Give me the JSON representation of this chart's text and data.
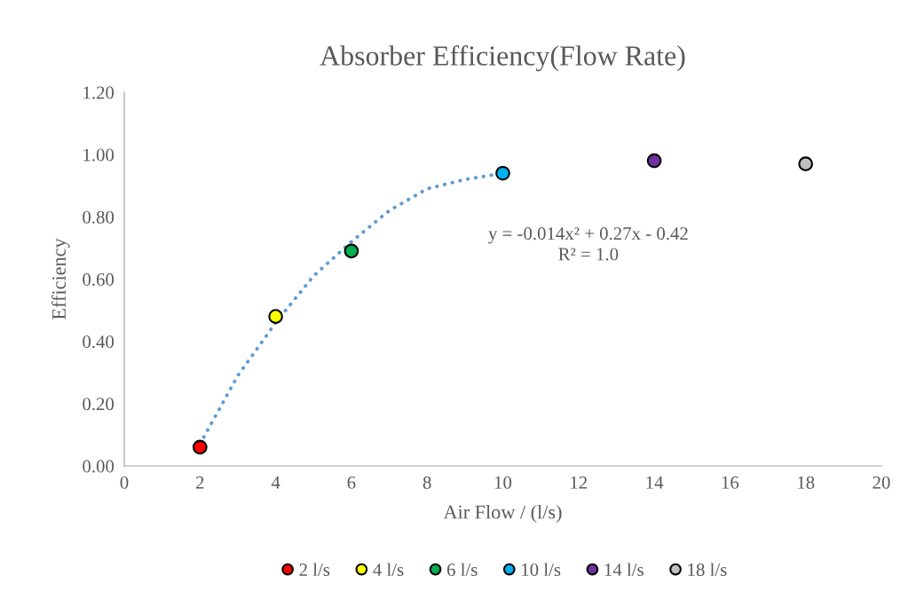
{
  "chart_data": {
    "type": "scatter",
    "title": "Absorber Efficiency(Flow Rate)",
    "xlabel": "Air Flow / (l/s)",
    "ylabel": "Efficiency",
    "xlim": [
      0,
      20
    ],
    "xticks": [
      0,
      2,
      4,
      6,
      8,
      10,
      12,
      14,
      16,
      18,
      20
    ],
    "ylim": [
      0,
      1.2
    ],
    "yticks": [
      {
        "value": 0,
        "label": "0.00"
      },
      {
        "value": 0.2,
        "label": "0.20"
      },
      {
        "value": 0.4,
        "label": "0.40"
      },
      {
        "value": 0.6,
        "label": "0.60"
      },
      {
        "value": 0.8,
        "label": "0.80"
      },
      {
        "value": 1.0,
        "label": "1.00"
      },
      {
        "value": 1.2,
        "label": "1.20"
      }
    ],
    "grid": false,
    "legend": "bottom",
    "marker": "circle",
    "series": [
      {
        "type": "line",
        "color": "#5b9bd5",
        "line_style": "dotted",
        "marker": "none",
        "x": [
          2,
          3,
          4,
          5,
          6,
          7,
          8,
          9,
          10
        ],
        "values": [
          0.07,
          0.29,
          0.46,
          0.61,
          0.72,
          0.82,
          0.89,
          0.92,
          0.94
        ]
      },
      {
        "name": "2 l/s",
        "color": "#ff0000",
        "x": [
          2
        ],
        "values": [
          0.06
        ]
      },
      {
        "name": "4 l/s",
        "color": "#ffff00",
        "x": [
          4
        ],
        "values": [
          0.48
        ]
      },
      {
        "name": "6 l/s",
        "color": "#00b050",
        "x": [
          6
        ],
        "values": [
          0.69
        ]
      },
      {
        "name": "10 l/s",
        "color": "#00b0f0",
        "x": [
          10
        ],
        "values": [
          0.94
        ]
      },
      {
        "name": "14 l/s",
        "color": "#7030a0",
        "x": [
          14
        ],
        "values": [
          0.98
        ]
      },
      {
        "name": "18 l/s",
        "color": "#bfbfbf",
        "x": [
          18
        ],
        "values": [
          0.97
        ]
      }
    ],
    "annotations": [
      "y = -0.014x² + 0.27x - 0.42\nR² = 1.0"
    ]
  }
}
